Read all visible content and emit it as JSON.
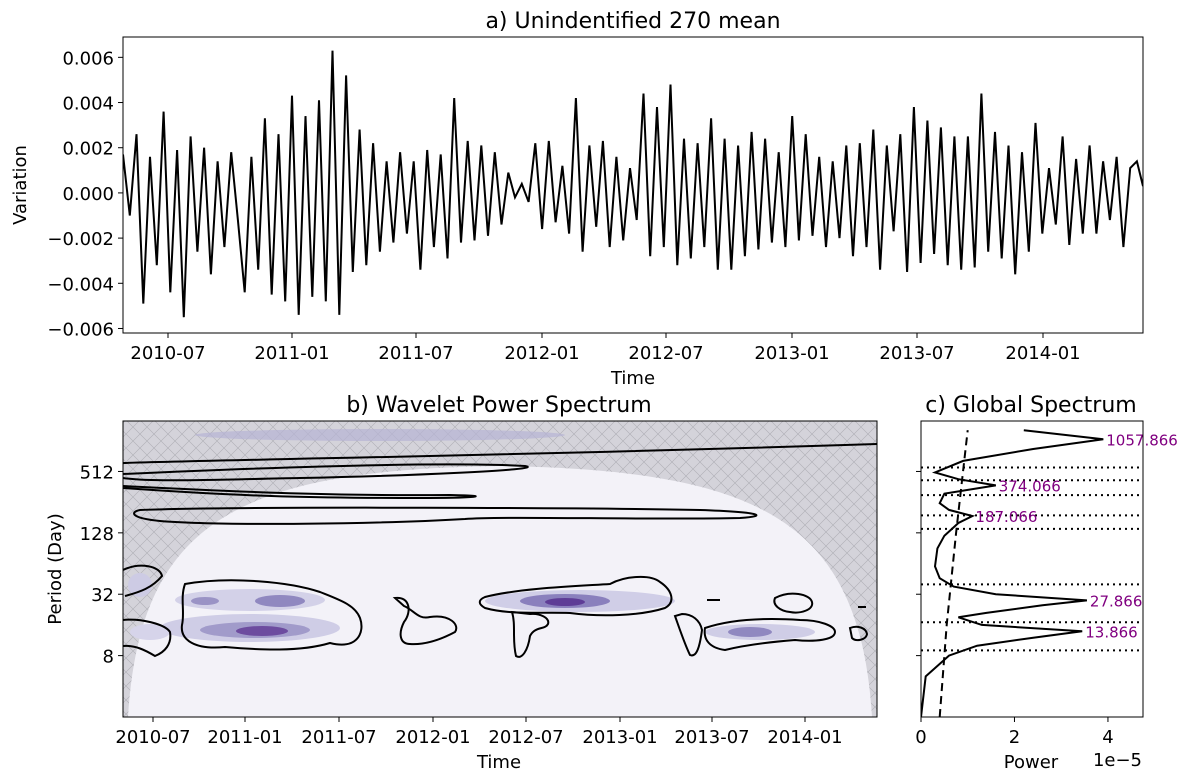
{
  "chart_data": [
    {
      "id": "a",
      "type": "line",
      "title": "a) Unindentified 270 mean",
      "xlabel": "Time",
      "ylabel": "Variation",
      "x_range": [
        "2010-04-14",
        "2014-06-01"
      ],
      "xlim": [
        0,
        1509
      ],
      "ylim": [
        -0.0062,
        0.0069
      ],
      "x_ticks": [
        "2010-07",
        "2011-01",
        "2011-07",
        "2012-01",
        "2012-07",
        "2013-01",
        "2013-07",
        "2014-01"
      ],
      "y_ticks": [
        "0.006",
        "0.004",
        "0.002",
        "0.000",
        "−0.002",
        "−0.004",
        "−0.006"
      ],
      "y_tick_values": [
        0.006,
        0.004,
        0.002,
        0.0,
        -0.002,
        -0.004,
        -0.006
      ],
      "line_color": "#000000",
      "series": [
        {
          "x": [
            0,
            10,
            20,
            30,
            40,
            50,
            60,
            70,
            80,
            90,
            100,
            110,
            120,
            130,
            140,
            150,
            160,
            170,
            180,
            190,
            200,
            210,
            220,
            230,
            240,
            250,
            260,
            270,
            280,
            290,
            300,
            310,
            320,
            330,
            340,
            350,
            360,
            370,
            380,
            390,
            400,
            410,
            420,
            430,
            440,
            450,
            460,
            470,
            480,
            490,
            500,
            510,
            520,
            530,
            540,
            550,
            560,
            570,
            580,
            590,
            600,
            610,
            620,
            630,
            640,
            650,
            660,
            670,
            680,
            690,
            700,
            710,
            720,
            730,
            740,
            750,
            760,
            770,
            780,
            790,
            800,
            810,
            820,
            830,
            840,
            850,
            860,
            870,
            880,
            890,
            900,
            910,
            920,
            930,
            940,
            950,
            960,
            970,
            980,
            990,
            1000,
            1010,
            1020,
            1030,
            1040,
            1050,
            1060,
            1070,
            1080,
            1090,
            1100,
            1110,
            1120,
            1130,
            1140,
            1150,
            1160,
            1170,
            1180,
            1190,
            1200,
            1210,
            1220,
            1230,
            1240,
            1250,
            1260,
            1270,
            1280,
            1290,
            1300,
            1310,
            1320,
            1330,
            1340,
            1350,
            1360,
            1370,
            1380,
            1390,
            1400,
            1410,
            1420,
            1430,
            1440,
            1450,
            1460,
            1470,
            1480,
            1490,
            1500,
            1509
          ],
          "y": [
            0.0017,
            -0.001,
            0.0026,
            -0.0049,
            0.0016,
            -0.0032,
            0.0036,
            -0.0044,
            0.0019,
            -0.0055,
            0.0025,
            -0.0026,
            0.002,
            -0.0036,
            0.0014,
            -0.0024,
            0.0018,
            -0.0012,
            -0.0044,
            0.0016,
            -0.0034,
            0.0033,
            -0.0045,
            0.0026,
            -0.0048,
            0.0043,
            -0.0054,
            0.0034,
            -0.0046,
            0.0041,
            -0.0048,
            0.0063,
            -0.0054,
            0.0052,
            -0.0035,
            0.0028,
            -0.0032,
            0.0022,
            -0.0026,
            0.0014,
            -0.0022,
            0.0018,
            -0.0018,
            0.0014,
            -0.0034,
            0.0019,
            -0.0024,
            0.0017,
            -0.0029,
            0.0042,
            -0.0022,
            0.0023,
            -0.0021,
            0.0021,
            -0.0019,
            0.0018,
            -0.0014,
            0.0009,
            -0.0002,
            0.0004,
            -0.0004,
            0.0022,
            -0.0016,
            0.0023,
            -0.0013,
            0.0012,
            -0.0018,
            0.0042,
            -0.0026,
            0.0021,
            -0.0015,
            0.0023,
            -0.0024,
            0.0016,
            -0.0021,
            0.0011,
            -0.0012,
            0.0044,
            -0.0028,
            0.0038,
            -0.0024,
            0.0048,
            -0.0032,
            0.0024,
            -0.0029,
            0.0022,
            -0.0024,
            0.0033,
            -0.0034,
            0.0024,
            -0.0034,
            0.0021,
            -0.0028,
            0.0027,
            -0.0025,
            0.0024,
            -0.0022,
            0.0018,
            -0.0024,
            0.0034,
            -0.0021,
            0.0026,
            -0.0019,
            0.0016,
            -0.0024,
            0.0014,
            -0.002,
            0.0021,
            -0.0028,
            0.0022,
            -0.0024,
            0.0028,
            -0.0034,
            0.0021,
            -0.0017,
            0.0026,
            -0.0035,
            0.0038,
            -0.0031,
            0.0032,
            -0.0027,
            0.0029,
            -0.0032,
            0.0025,
            -0.0034,
            0.0025,
            -0.0033,
            0.0044,
            -0.0026,
            0.0027,
            -0.0029,
            0.0021,
            -0.0036,
            0.0018,
            -0.0026,
            0.0031,
            -0.0018,
            0.0011,
            -0.0014,
            0.0025,
            -0.0023,
            0.0015,
            -0.0018,
            0.0021,
            -0.0018,
            0.0014,
            -0.0012,
            0.0016,
            -0.0024,
            0.0011,
            0.0014,
            0.0003
          ]
        }
      ]
    },
    {
      "id": "b",
      "type": "heatmap",
      "title": "b) Wavelet Power Spectrum",
      "xlabel": "Time",
      "ylabel": "Period (Day)",
      "x_ticks": [
        "2010-07",
        "2011-01",
        "2011-07",
        "2012-01",
        "2012-07",
        "2013-01",
        "2013-07",
        "2014-01"
      ],
      "y_ticks": [
        "512",
        "128",
        "32",
        "8"
      ],
      "y_scale": "log2",
      "ylim_period": [
        2,
        1600
      ],
      "colormap": "Purples",
      "hatched_region": "cone of influence",
      "high_power_blobs": [
        {
          "x_start": "2010-11",
          "x_end": "2011-04",
          "period_low": 9,
          "period_high": 18
        },
        {
          "x_start": "2010-09",
          "x_end": "2011-05",
          "period_low": 22,
          "period_high": 36
        },
        {
          "x_start": "2012-05",
          "x_end": "2013-04",
          "period_low": 24,
          "period_high": 36
        },
        {
          "x_start": "2013-08",
          "x_end": "2013-12",
          "period_low": 9,
          "period_high": 14
        }
      ]
    },
    {
      "id": "c",
      "type": "line",
      "title": "c) Global Spectrum",
      "xlabel": "Power",
      "x_scale_label": "1e−5",
      "x_ticks": [
        "0",
        "2",
        "4"
      ],
      "x_tick_values": [
        0,
        2,
        4
      ],
      "xlim": [
        0,
        4.75
      ],
      "y_scale": "log2",
      "series": [
        {
          "name": "",
          "style": "solid",
          "period": [
            2,
            5,
            8,
            10,
            12,
            13.866,
            16,
            19,
            21,
            25,
            27.866,
            32,
            38,
            46,
            60,
            90,
            120,
            160,
            187.066,
            215,
            250,
            310,
            374.066,
            430,
            500,
            650,
            850,
            1057.866,
            1300
          ],
          "power": [
            0.0,
            0.1,
            0.6,
            1.2,
            2.4,
            3.45,
            1.3,
            0.8,
            1.4,
            2.6,
            3.55,
            1.6,
            0.7,
            0.4,
            0.3,
            0.35,
            0.5,
            0.8,
            1.1,
            0.6,
            0.4,
            0.5,
            1.6,
            0.8,
            0.3,
            0.9,
            2.4,
            3.9,
            2.2
          ]
        },
        {
          "name": "",
          "style": "dashed",
          "period": [
            2,
            16,
            128,
            1300
          ],
          "power": [
            0.4,
            0.55,
            0.75,
            1.0
          ]
        }
      ],
      "dotted_period_lines": [
        9,
        17,
        40,
        140,
        190,
        300,
        420,
        560
      ],
      "peak_labels": [
        {
          "text": "1057.866",
          "period": 1057.866,
          "power": 3.9
        },
        {
          "text": "374.066",
          "period": 374.066,
          "power": 1.6
        },
        {
          "text": "187.066",
          "period": 187.066,
          "power": 1.1
        },
        {
          "text": "27.866",
          "period": 27.866,
          "power": 3.55
        },
        {
          "text": "13.866",
          "period": 13.866,
          "power": 3.45
        }
      ],
      "peak_label_color": "#800080"
    }
  ]
}
